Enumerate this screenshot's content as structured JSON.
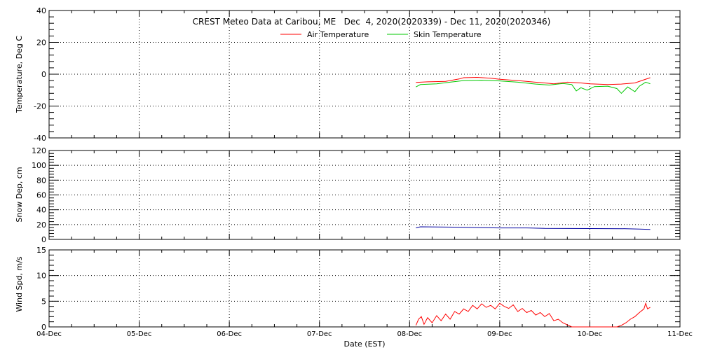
{
  "title": "CREST Meteo Data at Caribou, ME   Dec  4, 2020(2020339) - Dec 11, 2020(2020346)",
  "xlabel": "Date (EST)",
  "x_tick_labels": [
    "04-Dec",
    "05-Dec",
    "06-Dec",
    "07-Dec",
    "08-Dec",
    "09-Dec",
    "10-Dec",
    "11-Dec"
  ],
  "colors": {
    "air": "#ff0000",
    "skin": "#00c800",
    "snow": "#0000a0",
    "wind": "#ff0000"
  },
  "chart_data": [
    {
      "type": "line",
      "ylabel": "Temperature, Deg C",
      "xlim": [
        0,
        7
      ],
      "ylim": [
        -40,
        40
      ],
      "yticks": [
        -40,
        -20,
        0,
        20,
        40
      ],
      "grid": true,
      "legend_position": "top-center",
      "series": [
        {
          "name": "Air Temperature",
          "color": "#ff0000",
          "points": [
            [
              4.07,
              -5.2
            ],
            [
              4.2,
              -4.8
            ],
            [
              4.4,
              -4.5
            ],
            [
              4.55,
              -3.0
            ],
            [
              4.6,
              -2.2
            ],
            [
              4.75,
              -2.0
            ],
            [
              4.9,
              -2.5
            ],
            [
              5.0,
              -3.2
            ],
            [
              5.2,
              -4.0
            ],
            [
              5.35,
              -4.8
            ],
            [
              5.5,
              -5.5
            ],
            [
              5.6,
              -6.0
            ],
            [
              5.75,
              -5.0
            ],
            [
              5.9,
              -5.5
            ],
            [
              6.0,
              -6.0
            ],
            [
              6.2,
              -6.5
            ],
            [
              6.35,
              -6.2
            ],
            [
              6.5,
              -5.5
            ],
            [
              6.6,
              -3.5
            ],
            [
              6.67,
              -2.2
            ]
          ]
        },
        {
          "name": "Skin Temperature",
          "color": "#00c800",
          "points": [
            [
              4.07,
              -8.0
            ],
            [
              4.12,
              -6.5
            ],
            [
              4.3,
              -6.0
            ],
            [
              4.45,
              -5.0
            ],
            [
              4.6,
              -4.0
            ],
            [
              4.8,
              -3.8
            ],
            [
              5.0,
              -4.2
            ],
            [
              5.2,
              -5.0
            ],
            [
              5.4,
              -6.2
            ],
            [
              5.55,
              -6.8
            ],
            [
              5.7,
              -5.8
            ],
            [
              5.8,
              -6.5
            ],
            [
              5.85,
              -10.5
            ],
            [
              5.9,
              -8.5
            ],
            [
              5.97,
              -10.0
            ],
            [
              6.05,
              -7.8
            ],
            [
              6.2,
              -7.5
            ],
            [
              6.3,
              -9.0
            ],
            [
              6.35,
              -12.0
            ],
            [
              6.42,
              -8.0
            ],
            [
              6.5,
              -11.0
            ],
            [
              6.55,
              -7.5
            ],
            [
              6.62,
              -5.0
            ],
            [
              6.67,
              -6.0
            ]
          ]
        }
      ]
    },
    {
      "type": "line",
      "ylabel": "Snow Dep, cm",
      "xlim": [
        0,
        7
      ],
      "ylim": [
        0,
        120
      ],
      "yticks": [
        0,
        20,
        40,
        60,
        80,
        100,
        120
      ],
      "grid": true,
      "series": [
        {
          "color": "#0000a0",
          "points": [
            [
              4.07,
              15.5
            ],
            [
              4.12,
              17.0
            ],
            [
              4.5,
              16.5
            ],
            [
              4.8,
              15.8
            ],
            [
              5.0,
              15.5
            ],
            [
              5.3,
              15.5
            ],
            [
              5.5,
              14.8
            ],
            [
              6.0,
              14.6
            ],
            [
              6.4,
              14.5
            ],
            [
              6.55,
              14.0
            ],
            [
              6.67,
              13.5
            ]
          ]
        }
      ]
    },
    {
      "type": "line",
      "ylabel": "Wind Spd, m/s",
      "xlim": [
        0,
        7
      ],
      "ylim": [
        0,
        15
      ],
      "yticks": [
        0,
        5,
        10,
        15
      ],
      "grid": true,
      "series": [
        {
          "color": "#ff0000",
          "points": [
            [
              4.07,
              0.3
            ],
            [
              4.1,
              1.5
            ],
            [
              4.13,
              2.0
            ],
            [
              4.16,
              0.5
            ],
            [
              4.2,
              1.8
            ],
            [
              4.25,
              0.8
            ],
            [
              4.3,
              2.2
            ],
            [
              4.35,
              1.2
            ],
            [
              4.4,
              2.5
            ],
            [
              4.45,
              1.5
            ],
            [
              4.5,
              3.0
            ],
            [
              4.55,
              2.5
            ],
            [
              4.6,
              3.5
            ],
            [
              4.65,
              3.0
            ],
            [
              4.7,
              4.2
            ],
            [
              4.75,
              3.5
            ],
            [
              4.8,
              4.5
            ],
            [
              4.85,
              3.8
            ],
            [
              4.9,
              4.2
            ],
            [
              4.95,
              3.5
            ],
            [
              5.0,
              4.6
            ],
            [
              5.05,
              4.0
            ],
            [
              5.1,
              3.6
            ],
            [
              5.15,
              4.3
            ],
            [
              5.2,
              3.0
            ],
            [
              5.25,
              3.6
            ],
            [
              5.3,
              2.8
            ],
            [
              5.35,
              3.2
            ],
            [
              5.4,
              2.3
            ],
            [
              5.45,
              2.8
            ],
            [
              5.5,
              2.0
            ],
            [
              5.55,
              2.6
            ],
            [
              5.6,
              1.2
            ],
            [
              5.65,
              1.5
            ],
            [
              5.7,
              0.8
            ],
            [
              5.75,
              0.4
            ],
            [
              5.8,
              0.0
            ],
            [
              5.9,
              0.0
            ],
            [
              6.0,
              0.0
            ],
            [
              6.1,
              0.0
            ],
            [
              6.2,
              0.0
            ],
            [
              6.3,
              0.0
            ],
            [
              6.35,
              0.3
            ],
            [
              6.4,
              0.8
            ],
            [
              6.45,
              1.5
            ],
            [
              6.5,
              2.0
            ],
            [
              6.55,
              2.8
            ],
            [
              6.6,
              3.5
            ],
            [
              6.62,
              4.6
            ],
            [
              6.64,
              3.5
            ],
            [
              6.67,
              3.8
            ]
          ]
        }
      ]
    }
  ]
}
